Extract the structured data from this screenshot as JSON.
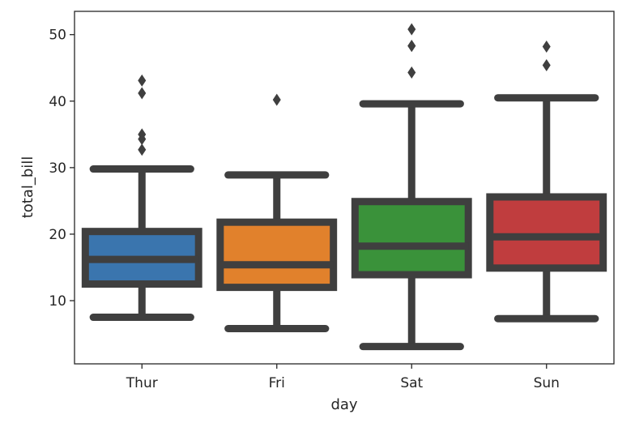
{
  "chart_data": {
    "type": "box",
    "xlabel": "day",
    "ylabel": "total_bill",
    "ylim": [
      0.5,
      53.5
    ],
    "yticks": [
      10,
      20,
      30,
      40,
      50
    ],
    "grid": false,
    "line_color": "#3f3f3f",
    "categories": [
      "Thur",
      "Fri",
      "Sat",
      "Sun"
    ],
    "boxes": [
      {
        "category": "Thur",
        "color": "#3a75ae",
        "whisker_low": 7.5,
        "q1": 12.5,
        "median": 16.2,
        "q3": 20.4,
        "whisker_high": 29.8,
        "outliers": [
          32.7,
          34.3,
          35.0,
          41.2,
          43.1
        ]
      },
      {
        "category": "Fri",
        "color": "#e1812c",
        "whisker_low": 5.8,
        "q1": 12.0,
        "median": 15.4,
        "q3": 21.8,
        "whisker_high": 28.9,
        "outliers": [
          40.2
        ]
      },
      {
        "category": "Sat",
        "color": "#3a923a",
        "whisker_low": 3.1,
        "q1": 13.9,
        "median": 18.2,
        "q3": 24.9,
        "whisker_high": 39.6,
        "outliers": [
          44.3,
          48.3,
          48.3,
          50.8
        ]
      },
      {
        "category": "Sun",
        "color": "#c03d3e",
        "whisker_low": 7.3,
        "q1": 14.9,
        "median": 19.6,
        "q3": 25.6,
        "whisker_high": 40.5,
        "outliers": [
          45.4,
          48.2
        ]
      }
    ]
  }
}
